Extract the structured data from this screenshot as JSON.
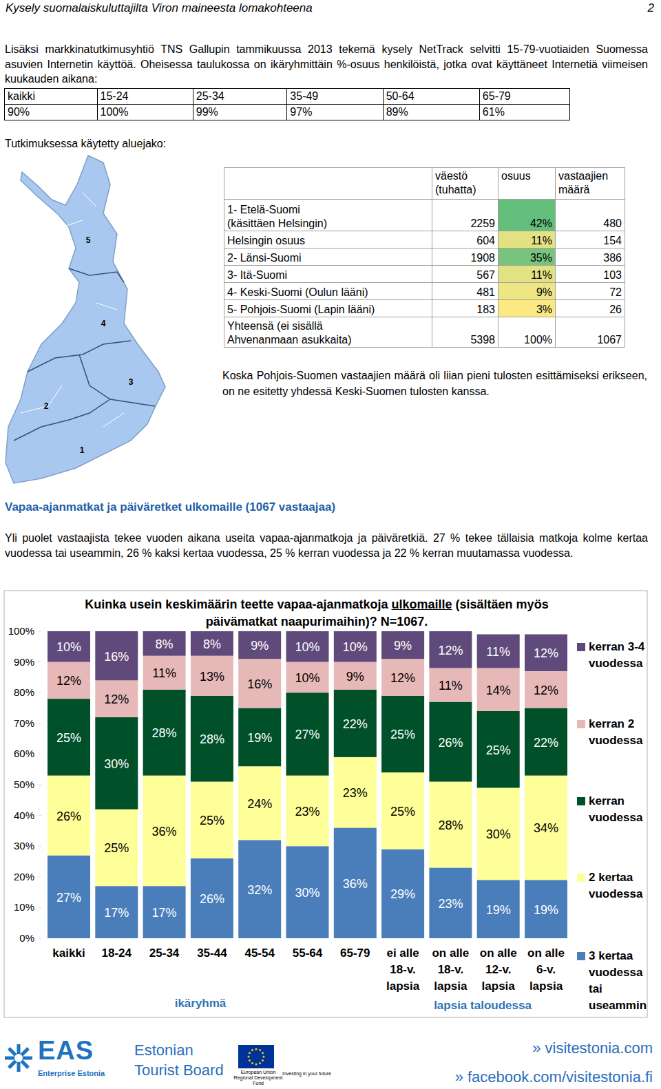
{
  "header": {
    "title": "Kysely suomalaiskuluttajilta Viron maineesta lomakohteena",
    "page": "2"
  },
  "intro": "Lisäksi markkinatutkimusyhtiö TNS Gallupin tammikuussa 2013 tekemä kysely NetTrack selvitti 15-79-vuotiaiden Suomessa asuvien Internetin käyttöä. Oheisessa taulukossa on ikäryhmittäin %-osuus henkilöistä, jotka ovat käyttäneet Internetiä viimeisen kuukauden aikana:",
  "age_table": {
    "rows": [
      [
        "kaikki",
        "15-24",
        "25-34",
        "35-49",
        "50-64",
        "65-79"
      ],
      [
        "90%",
        "100%",
        "99%",
        "97%",
        "89%",
        "61%"
      ]
    ]
  },
  "region_caption": "Tutkimuksessa käytetty aluejako:",
  "map_labels": [
    "5",
    "4",
    "3",
    "2",
    "1"
  ],
  "region_table": {
    "columns": [
      "väestö (tuhatta)",
      "osuus",
      "vastaajien määrä"
    ],
    "rows": [
      [
        "1- Etelä-Suomi\n(käsittäen Helsingin)",
        2259,
        "42%",
        480
      ],
      [
        "Helsingin osuus",
        604,
        "11%",
        154
      ],
      [
        "2- Länsi-Suomi",
        1908,
        "35%",
        386
      ],
      [
        "3- Itä-Suomi",
        567,
        "11%",
        103
      ],
      [
        "4- Keski-Suomi (Oulun lääni)",
        481,
        "9%",
        72
      ],
      [
        "5- Pohjois-Suomi (Lapin lääni)",
        183,
        "3%",
        26
      ],
      [
        "Yhteensä (ei sisällä\nAhvenanmaan asukkaita)",
        5398,
        "100%",
        1067
      ]
    ],
    "colors": [
      "#63be7b",
      "#e3e282",
      "#78c47d",
      "#e3e282",
      "#eee583",
      "#fde983",
      "#ffffff"
    ]
  },
  "region_note": "Koska Pohjois-Suomen vastaajien määrä oli liian pieni tulosten esittämiseksi erikseen, on ne esitetty yhdessä Keski-Suomen tulosten kanssa.",
  "section_title": "Vapaa-ajanmatkat ja päiväretket ulkomaille (1067 vastaajaa)",
  "section_text": "Yli puolet vastaajista tekee vuoden aikana useita vapaa-ajanmatkoja ja päiväretkiä. 27 % tekee tällaisia matkoja kolme kertaa vuodessa tai useammin, 26 % kaksi kertaa vuodessa, 25 % kerran vuodessa ja 22 % kerran muutamassa vuodessa.",
  "chart_data": {
    "type": "bar",
    "stacked": true,
    "data_labels": true,
    "legend": "right",
    "title": [
      "Kuinka usein keskimäärin teette vapaa-ajanmatkoja ",
      "ulkomaille",
      " (sisältäen myös",
      "päivämatkat naapurimaihin)? N=1067."
    ],
    "categories": [
      "kaikki",
      "18-24",
      "25-34",
      "35-44",
      "45-54",
      "55-64",
      "65-79",
      "ei alle 18-v. lapsia",
      "on alle 18-v. lapsia",
      "on alle 12-v. lapsia",
      "on alle 6-v. lapsia"
    ],
    "x_groups": [
      "ikäryhmä",
      "lapsia taloudessa"
    ],
    "ylim": [
      0,
      100
    ],
    "yticks": [
      {
        "value": 0,
        "label": "0%"
      },
      {
        "value": 10,
        "label": "10%"
      },
      {
        "value": 20,
        "label": "20%"
      },
      {
        "value": 30,
        "label": "30%"
      },
      {
        "value": 40,
        "label": "40%"
      },
      {
        "value": 50,
        "label": "50%"
      },
      {
        "value": 60,
        "label": "60%"
      },
      {
        "value": 70,
        "label": "70%"
      },
      {
        "value": 80,
        "label": "80%"
      },
      {
        "value": 90,
        "label": "90%"
      },
      {
        "value": 100,
        "label": "100%"
      }
    ],
    "series": [
      {
        "name": "3 kertaa vuodessa tai useammin",
        "color": "#4a7ebb",
        "values": [
          27,
          17,
          17,
          26,
          32,
          30,
          36,
          29,
          23,
          19,
          19
        ],
        "value_labels": [
          "27%",
          "17%",
          "17%",
          "26%",
          "32%",
          "30%",
          "36%",
          "29%",
          "23%",
          "19%",
          "19%"
        ]
      },
      {
        "name": "2 kertaa vuodessa",
        "color": "#ffff99",
        "values": [
          26,
          25,
          36,
          25,
          24,
          23,
          23,
          25,
          28,
          30,
          34
        ],
        "value_labels": [
          "26%",
          "25%",
          "36%",
          "25%",
          "24%",
          "23%",
          "23%",
          "25%",
          "28%",
          "30%",
          "34%"
        ]
      },
      {
        "name": "kerran vuodessa",
        "color": "#00502a",
        "values": [
          25,
          30,
          28,
          28,
          19,
          27,
          22,
          25,
          26,
          25,
          22
        ],
        "value_labels": [
          "25%",
          "30%",
          "28%",
          "28%",
          "19%",
          "27%",
          "22%",
          "25%",
          "26%",
          "25%",
          "22%"
        ]
      },
      {
        "name": "kerran 2 vuodessa",
        "color": "#e6b9b8",
        "values": [
          12,
          12,
          11,
          13,
          16,
          10,
          9,
          12,
          11,
          14,
          12
        ],
        "value_labels": [
          "12%",
          "12%",
          "11%",
          "13%",
          "16%",
          "10%",
          "9%",
          "12%",
          "11%",
          "14%",
          "12%"
        ]
      },
      {
        "name": "kerran 3-4 vuodessa",
        "color": "#604a7b",
        "values": [
          10,
          16,
          8,
          8,
          9,
          10,
          10,
          9,
          12,
          11,
          12
        ],
        "value_labels": [
          "10%",
          "16%",
          "8%",
          "8%",
          "9%",
          "10%",
          "10%",
          "9%",
          "12%",
          "11%",
          "12%"
        ]
      }
    ]
  },
  "footer": {
    "eas": "EAS",
    "eas_sub": "Enterprise Estonia",
    "board": [
      "Estonian",
      "Tourist Board"
    ],
    "eu": [
      "European Union",
      "Regional Development Fund"
    ],
    "eu_slogan": "Investing in your future",
    "links": [
      "» visitestonia.com",
      "» facebook.com/visitestonia.fi"
    ]
  }
}
